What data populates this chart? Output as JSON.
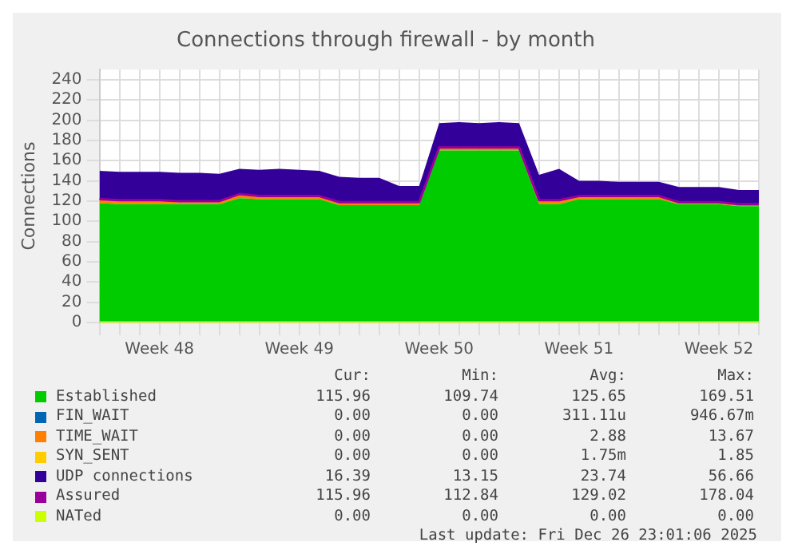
{
  "chart_data": {
    "type": "area",
    "title": "Connections through firewall - by month",
    "ylabel": "Connections",
    "categories": [
      null,
      null,
      null,
      "Week 48",
      null,
      null,
      null,
      null,
      null,
      null,
      "Week 49",
      null,
      null,
      null,
      null,
      null,
      null,
      "Week 50",
      null,
      null,
      null,
      null,
      null,
      null,
      "Week 51",
      null,
      null,
      null,
      null,
      null,
      null,
      "Week 52",
      null,
      null
    ],
    "ylim": [
      0,
      250
    ],
    "yticks": [
      0,
      20,
      40,
      60,
      80,
      100,
      120,
      140,
      160,
      180,
      200,
      220,
      240
    ],
    "stacked": true,
    "grid": true,
    "legend": "bottom",
    "marker": "none",
    "series": [
      {
        "name": "Established",
        "color": "#00cc00",
        "values": [
          118,
          117,
          117,
          117,
          117,
          117,
          117,
          123,
          122,
          122,
          122,
          122,
          116,
          116,
          116,
          116,
          116,
          170,
          170,
          170,
          170,
          170,
          117,
          117,
          122,
          122,
          122,
          122,
          122,
          117,
          117,
          117,
          115,
          115
        ]
      },
      {
        "name": "FIN_WAIT",
        "color": "#0066b3",
        "values": [
          null,
          null,
          null,
          null,
          null,
          null,
          null,
          null,
          null,
          null,
          null,
          null,
          null,
          null,
          null,
          null,
          null,
          null,
          null,
          null,
          null,
          null,
          null,
          null,
          null,
          null,
          null,
          null,
          null,
          null,
          null,
          null,
          null,
          null
        ]
      },
      {
        "name": "TIME_WAIT",
        "color": "#ff8000",
        "values": [
          3,
          3,
          3,
          3,
          2,
          2,
          2,
          3,
          2,
          2,
          2,
          2,
          2,
          2,
          2,
          2,
          2,
          2,
          2,
          2,
          2,
          2,
          3,
          3,
          2,
          2,
          2,
          2,
          2,
          1,
          1,
          1,
          1,
          1
        ]
      },
      {
        "name": "SYN_SENT",
        "color": "#ffcc00",
        "values": [
          null,
          null,
          null,
          null,
          null,
          null,
          null,
          null,
          null,
          null,
          null,
          null,
          null,
          null,
          null,
          null,
          null,
          null,
          null,
          null,
          null,
          null,
          null,
          null,
          null,
          null,
          null,
          null,
          null,
          null,
          null,
          null,
          null,
          null
        ]
      },
      {
        "name": "UDP connections",
        "color": "#330099",
        "values": [
          29,
          29,
          29,
          29,
          29,
          29,
          28,
          26,
          27,
          28,
          27,
          26,
          26,
          25,
          25,
          17,
          17,
          25,
          26,
          25,
          26,
          25,
          26,
          32,
          16,
          16,
          15,
          15,
          15,
          16,
          16,
          16,
          15,
          15
        ]
      },
      {
        "name": "Assured",
        "type": "line",
        "color": "#990099",
        "values": [
          122,
          121,
          121,
          121,
          120,
          120,
          120,
          127,
          125,
          125,
          125,
          125,
          119,
          119,
          119,
          119,
          119,
          173,
          173,
          173,
          173,
          173,
          121,
          121,
          125,
          125,
          125,
          125,
          125,
          119,
          119,
          119,
          117,
          117
        ]
      },
      {
        "name": "NATed",
        "type": "line",
        "color": "#ccff00",
        "values": [
          0,
          0,
          0,
          0,
          0,
          0,
          0,
          0,
          0,
          0,
          0,
          0,
          0,
          0,
          0,
          0,
          0,
          0,
          0,
          0,
          0,
          0,
          0,
          0,
          0,
          0,
          0,
          0,
          0,
          0,
          0,
          0,
          0,
          0
        ]
      }
    ],
    "annotations": [
      "Cur:",
      "Min:",
      "Avg:",
      "Max:",
      "115.96",
      "109.74",
      "125.65",
      "169.51",
      "0.00",
      "0.00",
      "311.11u",
      "946.67m",
      "0.00",
      "0.00",
      "2.88",
      "13.67",
      "0.00",
      "0.00",
      "1.75m",
      "1.85",
      "16.39",
      "13.15",
      "23.74",
      "56.66",
      "115.96",
      "112.84",
      "129.02",
      "178.04",
      "0.00",
      "0.00",
      "0.00",
      "0.00",
      "Last update: Fri Dec 26 23:01:06 2025"
    ]
  }
}
